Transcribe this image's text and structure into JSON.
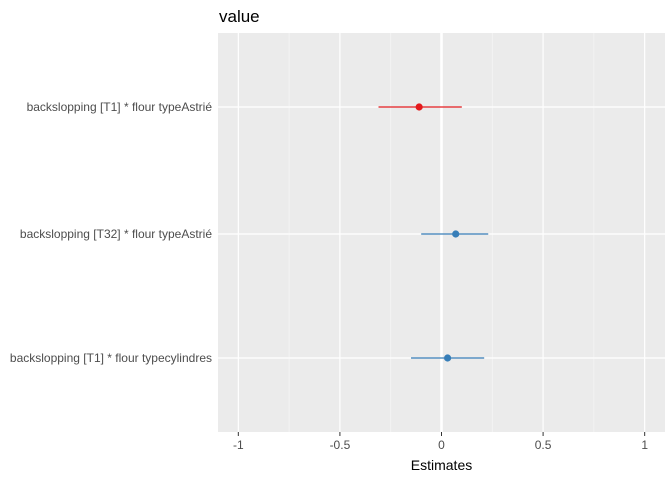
{
  "chart_data": {
    "type": "forest",
    "title": "value",
    "xlabel": "Estimates",
    "ylabel": "",
    "xlim": [
      -1.1,
      1.1
    ],
    "x_ticks": [
      -1,
      -0.5,
      0,
      0.5,
      1
    ],
    "x_tick_labels": [
      "-1",
      "-0.5",
      "0",
      "0.5",
      "1"
    ],
    "grid": true,
    "reference_line": 0,
    "terms": [
      {
        "label": "backslopping [T1] * flour typeAstrié",
        "estimate": -0.11,
        "ci_low": -0.31,
        "ci_high": 0.1,
        "color": "#e41a1c"
      },
      {
        "label": "backslopping [T32] * flour typeAstrié",
        "estimate": 0.07,
        "ci_low": -0.1,
        "ci_high": 0.23,
        "color": "#377eb8"
      },
      {
        "label": "backslopping [T1] * flour typecylindres",
        "estimate": 0.03,
        "ci_low": -0.15,
        "ci_high": 0.21,
        "color": "#377eb8"
      }
    ]
  },
  "colors": {
    "panel_background": "#ebebeb",
    "grid_major": "#ffffff",
    "grid_minor": "#f5f5f5",
    "negative": "#e41a1c",
    "positive": "#377eb8"
  }
}
